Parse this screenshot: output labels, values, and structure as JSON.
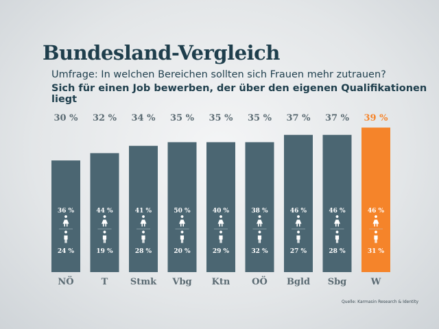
{
  "chart_data": {
    "type": "bar",
    "title": "Bundesland-Vergleich",
    "subtitle": "Umfrage: In welchen Bereichen sollten sich Frauen mehr zutrauen?",
    "question": "Sich für einen Job bewerben, der über den eigenen Qualifikationen liegt",
    "categories": [
      "NÖ",
      "T",
      "Stmk",
      "Vbg",
      "Ktn",
      "OÖ",
      "Bgld",
      "Sbg",
      "W"
    ],
    "values": [
      30,
      32,
      34,
      35,
      35,
      35,
      37,
      37,
      39
    ],
    "value_labels": [
      "30 %",
      "32 %",
      "34 %",
      "35 %",
      "35 %",
      "35 %",
      "37 %",
      "37 %",
      "39 %"
    ],
    "women": [
      "36 %",
      "44 %",
      "41 %",
      "50 %",
      "40 %",
      "38 %",
      "46 %",
      "46 %",
      "46 %"
    ],
    "men": [
      "24 %",
      "19 %",
      "28 %",
      "20 %",
      "29 %",
      "32 %",
      "27 %",
      "28 %",
      "31 %"
    ],
    "highlight_index": 8,
    "colors": {
      "bar": "#4b6672",
      "highlight": "#f5842a",
      "text": "#1e3e4c",
      "label": "#5a6a72"
    },
    "icons": {
      "women": "woman-icon",
      "men": "man-icon"
    },
    "source": "Quelle: Karmasin Research & Identity"
  }
}
